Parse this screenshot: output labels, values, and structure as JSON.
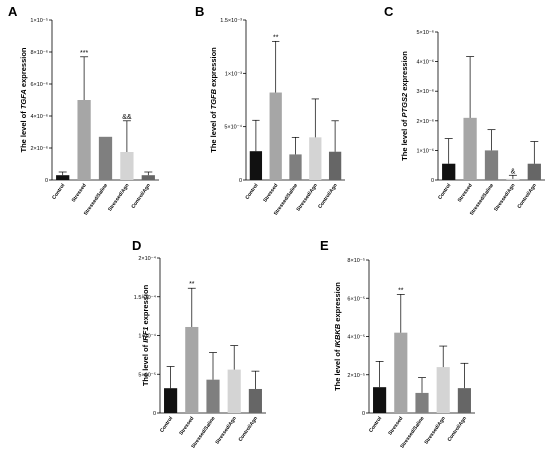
{
  "chart_data": [
    {
      "type": "bar",
      "panel": "A",
      "categories": [
        "Control",
        "Stressed",
        "Stressed/Saline",
        "Stressed/Agn",
        "Control/Agn"
      ],
      "values": [
        3e-07,
        5e-06,
        2.7e-06,
        1.75e-06,
        3e-07
      ],
      "errors": [
        2e-07,
        2.7e-06,
        0,
        1.95e-06,
        2e-07
      ],
      "annotations": [
        "",
        "***",
        "",
        "&&",
        ""
      ],
      "ylim": [
        0,
        1e-05
      ],
      "yticks": [
        0,
        2e-06,
        4e-06,
        6e-06,
        8e-06,
        1e-05
      ],
      "ytick_labels": [
        "0",
        "2×10⁻⁶",
        "4×10⁻⁶",
        "6×10⁻⁶",
        "8×10⁻⁶",
        "1×10⁻⁵"
      ],
      "ylabel_prefix": "The level of ",
      "ylabel_gene": "TGFA",
      "ylabel_suffix": " expression",
      "colors": [
        "#111111",
        "#a6a6a6",
        "#7f7f7f",
        "#d4d4d4",
        "#666666"
      ]
    },
    {
      "type": "bar",
      "panel": "B",
      "categories": [
        "Control",
        "Stressed",
        "Stressed/Saline",
        "Stressed/Agn",
        "Control/Agn"
      ],
      "values": [
        0.00027,
        0.00082,
        0.00024,
        0.0004,
        0.000265
      ],
      "errors": [
        0.00029,
        0.00048,
        0.00016,
        0.00036,
        0.00029
      ],
      "annotations": [
        "",
        "**",
        "",
        "",
        ""
      ],
      "ylim": [
        0,
        0.0015
      ],
      "yticks": [
        0,
        0.0005,
        0.001,
        0.0015
      ],
      "ytick_labels": [
        "0",
        "5×10⁻⁴",
        "1×10⁻³",
        "1.5×10⁻³"
      ],
      "ylabel_prefix": "The level of ",
      "ylabel_gene": "TGFB",
      "ylabel_suffix": " expression",
      "colors": [
        "#111111",
        "#a6a6a6",
        "#7f7f7f",
        "#d4d4d4",
        "#666666"
      ]
    },
    {
      "type": "bar",
      "panel": "C",
      "categories": [
        "Control",
        "Stressed",
        "Stressed/Saline",
        "Stressed/Agn",
        "Control/Agn"
      ],
      "values": [
        5.5e-07,
        2.1e-06,
        1e-06,
        4e-08,
        5.5e-07
      ],
      "errors": [
        8.5e-07,
        2.07e-06,
        7e-07,
        1.2e-07,
        7.5e-07
      ],
      "annotations": [
        "",
        "",
        "",
        "&",
        ""
      ],
      "ylim": [
        0,
        5e-06
      ],
      "yticks": [
        0,
        1e-06,
        2e-06,
        3e-06,
        4e-06,
        5e-06
      ],
      "ytick_labels": [
        "0",
        "1×10⁻⁶",
        "2×10⁻⁶",
        "3×10⁻⁶",
        "4×10⁻⁶",
        "5×10⁻⁶"
      ],
      "ylabel_prefix": "The level of ",
      "ylabel_gene": "PTGS2",
      "ylabel_suffix": " expression",
      "colors": [
        "#111111",
        "#a6a6a6",
        "#7f7f7f",
        "#d4d4d4",
        "#666666"
      ]
    },
    {
      "type": "bar",
      "panel": "D",
      "categories": [
        "Control",
        "Stressed",
        "Stressed/Saline",
        "Stressed/Agn",
        "Control/Agn"
      ],
      "values": [
        3.2e-05,
        0.000111,
        4.3e-05,
        5.6e-05,
        3.1e-05
      ],
      "errors": [
        2.8e-05,
        5e-05,
        3.5e-05,
        3.1e-05,
        2.3e-05
      ],
      "annotations": [
        "",
        "**",
        "",
        "",
        ""
      ],
      "ylim": [
        0,
        0.0002
      ],
      "yticks": [
        0,
        5e-05,
        0.0001,
        0.00015,
        0.0002
      ],
      "ytick_labels": [
        "0",
        "5×10⁻⁵",
        "1×10⁻⁴",
        "1.5×10⁻⁴",
        "2×10⁻⁴"
      ],
      "ylabel_prefix": "The level of ",
      "ylabel_gene": "IRF1",
      "ylabel_suffix": " expression",
      "colors": [
        "#111111",
        "#a6a6a6",
        "#7f7f7f",
        "#d4d4d4",
        "#666666"
      ]
    },
    {
      "type": "bar",
      "panel": "E",
      "categories": [
        "Control",
        "Stressed",
        "Stressed/Saline",
        "Stressed/Agn",
        "Control/Agn"
      ],
      "values": [
        1.35e-05,
        4.2e-05,
        1.05e-05,
        2.4e-05,
        1.3e-05
      ],
      "errors": [
        1.35e-05,
        2e-05,
        8e-06,
        1.1e-05,
        1.3e-05
      ],
      "annotations": [
        "",
        "**",
        "",
        "",
        ""
      ],
      "ylim": [
        0,
        8e-05
      ],
      "yticks": [
        0,
        2e-05,
        4e-05,
        6e-05,
        8e-05
      ],
      "ytick_labels": [
        "0",
        "2×10⁻⁵",
        "4×10⁻⁵",
        "6×10⁻⁵",
        "8×10⁻⁵"
      ],
      "ylabel_prefix": "The level of ",
      "ylabel_gene": "IKBKB",
      "ylabel_suffix": " expression",
      "colors": [
        "#111111",
        "#a6a6a6",
        "#7f7f7f",
        "#d4d4d4",
        "#666666"
      ]
    }
  ]
}
